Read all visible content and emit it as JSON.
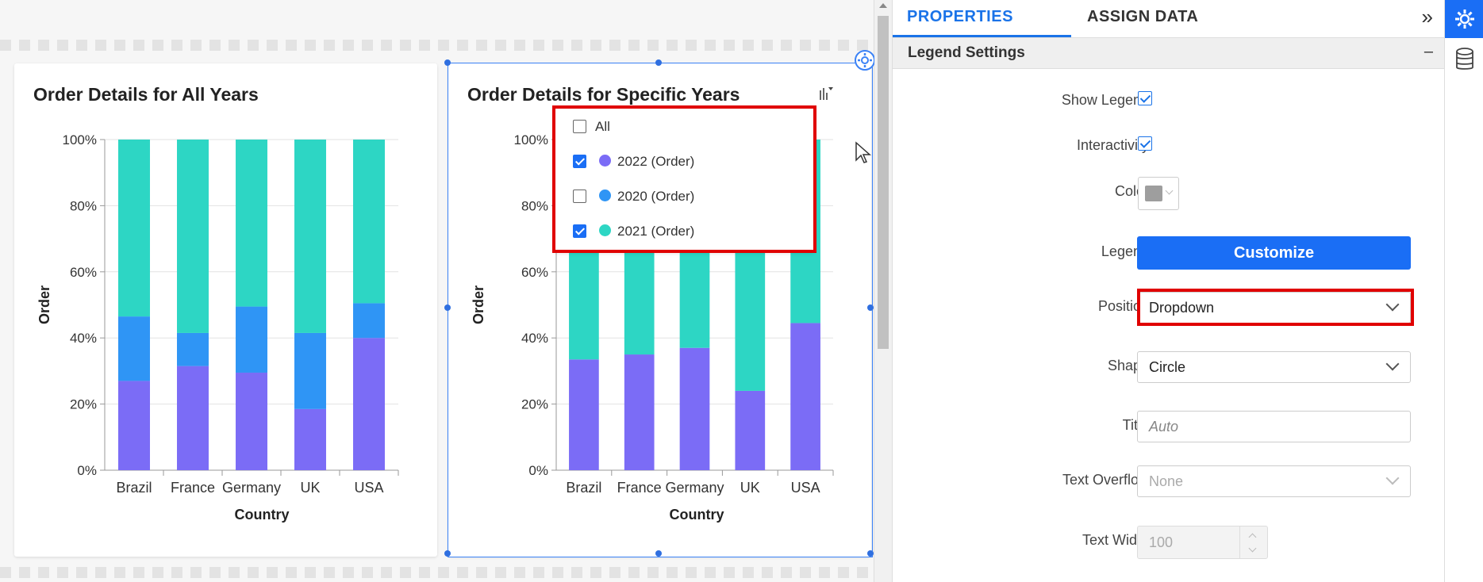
{
  "canvas": {
    "charts": [
      {
        "title": "Order Details for All Years"
      },
      {
        "title": "Order Details for Specific Years"
      }
    ]
  },
  "chart_data": [
    {
      "type": "bar",
      "stacked": "100%",
      "title": "Order Details for All Years",
      "xlabel": "Country",
      "ylabel": "Order",
      "categories": [
        "Brazil",
        "France",
        "Germany",
        "UK",
        "USA"
      ],
      "y_ticks": [
        "0%",
        "20%",
        "40%",
        "60%",
        "80%",
        "100%"
      ],
      "ylim": [
        0,
        100
      ],
      "series": [
        {
          "values": [
            27,
            31.5,
            29.5,
            18.5,
            40
          ],
          "color": "#7b6cf6"
        },
        {
          "values": [
            19.5,
            10,
            20,
            23,
            10.5
          ],
          "color": "#2f95f5"
        },
        {
          "values": [
            53.5,
            58.5,
            50.5,
            58.5,
            49.5
          ],
          "color": "#2dd6c4"
        }
      ]
    },
    {
      "type": "bar",
      "stacked": "100%",
      "title": "Order Details for Specific Years",
      "xlabel": "Country",
      "ylabel": "Order",
      "categories": [
        "Brazil",
        "France",
        "Germany",
        "UK",
        "USA"
      ],
      "y_ticks": [
        "0%",
        "20%",
        "40%",
        "60%",
        "80%",
        "100%"
      ],
      "ylim": [
        0,
        100
      ],
      "series": [
        {
          "name": "2022 (Order)",
          "values": [
            33.5,
            35,
            37,
            24,
            44.5
          ],
          "color": "#7b6cf6"
        },
        {
          "name": "2021 (Order)",
          "values": [
            66.5,
            65,
            63,
            76,
            55.5
          ],
          "color": "#2dd6c4"
        }
      ]
    }
  ],
  "legend_popup": {
    "items": [
      {
        "label": "All",
        "checked": false,
        "color": ""
      },
      {
        "label": "2022 (Order)",
        "checked": true,
        "color": "#7b6cf6"
      },
      {
        "label": "2020 (Order)",
        "checked": false,
        "color": "#2f95f5"
      },
      {
        "label": "2021 (Order)",
        "checked": true,
        "color": "#2dd6c4"
      }
    ]
  },
  "panel": {
    "tab_properties": "PROPERTIES",
    "tab_assign": "ASSIGN DATA",
    "expand_icon": "»",
    "section_title": "Legend Settings",
    "collapse_symbol": "–",
    "show_legend_label": "Show Legend",
    "show_legend_checked": true,
    "interactivity_label": "Interactivity",
    "interactivity_checked": true,
    "color_label": "Color",
    "color_value": "#9e9e9e",
    "legend_label": "Legend",
    "customize_label": "Customize",
    "position_label": "Position",
    "position_value": "Dropdown",
    "shape_label": "Shape",
    "shape_value": "Circle",
    "title_label": "Title",
    "title_placeholder": "Auto",
    "overflow_label": "Text Overflow",
    "overflow_value": "None",
    "width_label": "Text Width",
    "width_value": "100"
  },
  "accent_color": "#1a73e8"
}
